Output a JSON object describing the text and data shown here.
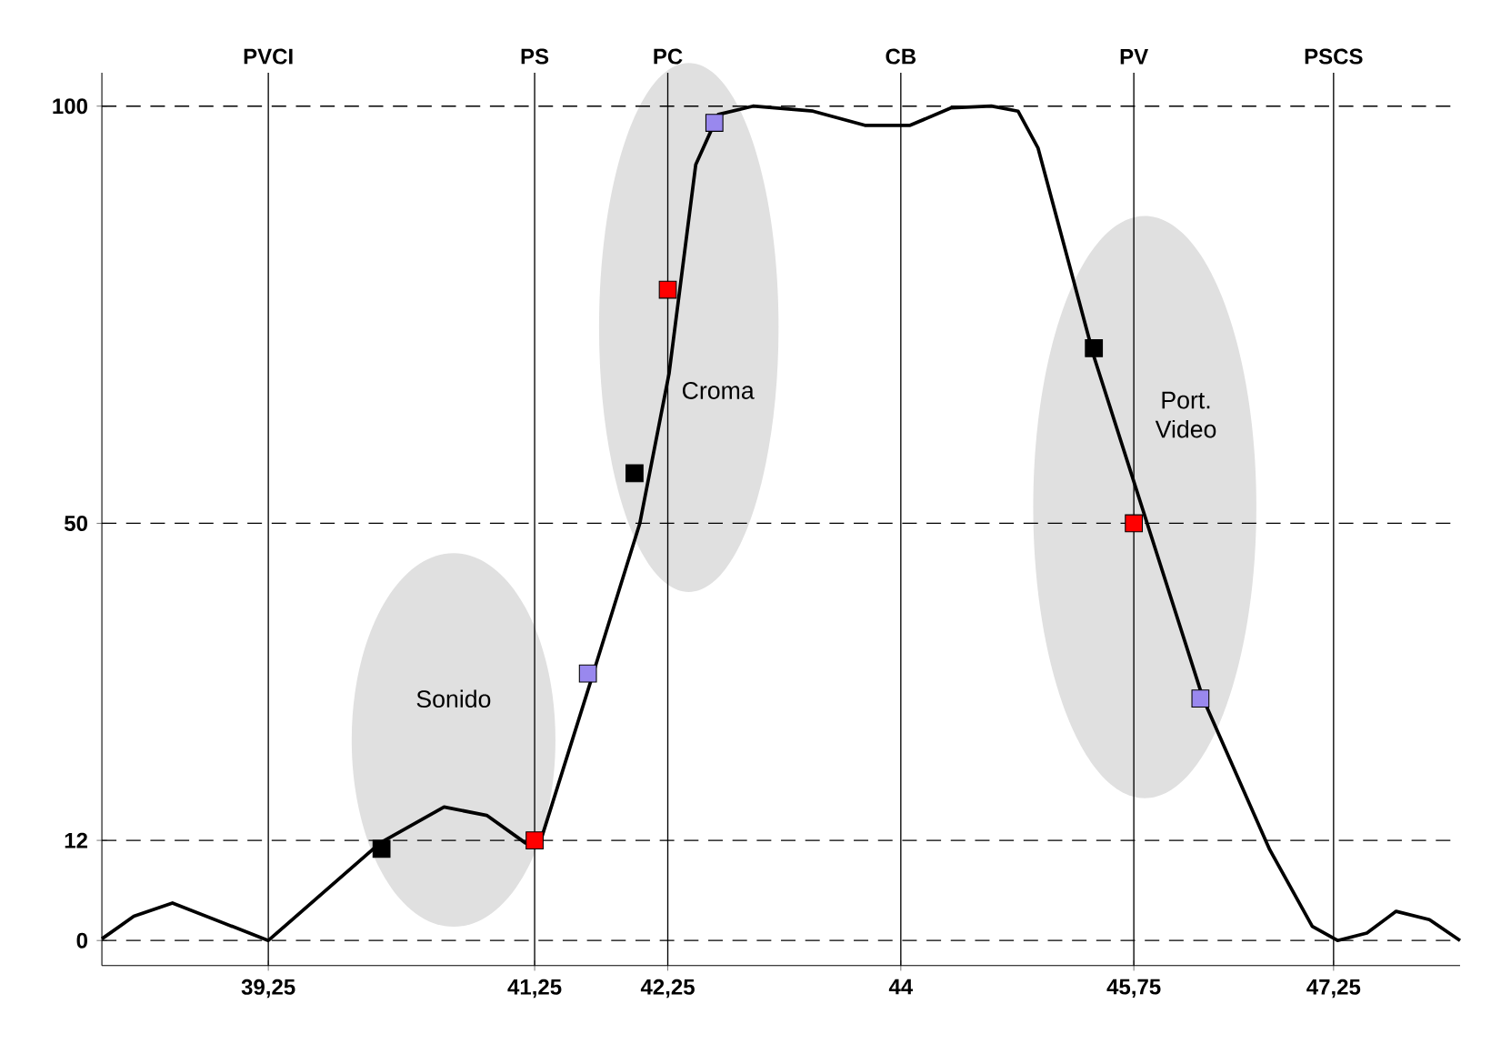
{
  "chart_data": {
    "type": "line",
    "xlim": [
      38.0,
      48.2
    ],
    "ylim": [
      -3,
      104
    ],
    "xticks": [
      {
        "value": 39.25,
        "label": "39,25"
      },
      {
        "value": 41.25,
        "label": "41,25"
      },
      {
        "value": 42.25,
        "label": "42,25"
      },
      {
        "value": 44,
        "label": "44"
      },
      {
        "value": 45.75,
        "label": "45,75"
      },
      {
        "value": 47.25,
        "label": "47,25"
      }
    ],
    "yticks": [
      0,
      12,
      50,
      100
    ],
    "grid": "y",
    "ref_lines": [
      {
        "axis": "x",
        "value": 39.25,
        "label": "PVCI"
      },
      {
        "axis": "x",
        "value": 41.25,
        "label": "PS"
      },
      {
        "axis": "x",
        "value": 42.25,
        "label": "PC"
      },
      {
        "axis": "x",
        "value": 44,
        "label": "CB"
      },
      {
        "axis": "x",
        "value": 45.75,
        "label": "PV"
      },
      {
        "axis": "x",
        "value": 47.25,
        "label": "PSCS"
      }
    ],
    "series": [
      {
        "color": "#000000",
        "marker": "none",
        "line_style": "solid",
        "x": [
          38.0,
          38.24,
          38.53,
          39.25,
          40.09,
          40.57,
          40.89,
          41.18,
          41.29,
          41.67,
          42.04,
          42.26,
          42.46,
          42.63,
          42.89,
          43.34,
          43.73,
          44.07,
          44.38,
          44.68,
          44.88,
          45.03,
          45.45,
          46.27,
          46.77,
          47.09,
          47.28,
          47.5,
          47.72,
          47.97,
          48.2
        ],
        "values": [
          0.2,
          2.9,
          4.5,
          0,
          11.7,
          16,
          15,
          11.7,
          11.7,
          31,
          50,
          68,
          93,
          99,
          100,
          99.4,
          97.7,
          97.7,
          99.8,
          100,
          99.4,
          95,
          70,
          29,
          10.9,
          1.7,
          0,
          0.9,
          3.5,
          2.5,
          0
        ]
      },
      {
        "type": "scatter",
        "color": "#000000",
        "marker": "square",
        "x": [
          40.1,
          42.0,
          45.45
        ],
        "values": [
          11,
          56,
          71
        ]
      },
      {
        "type": "scatter",
        "color": "#ff0000",
        "marker": "square",
        "x": [
          41.25,
          42.25,
          45.75
        ],
        "values": [
          12,
          78,
          50
        ]
      },
      {
        "type": "scatter",
        "color": "#9988ee",
        "marker": "square",
        "x": [
          41.65,
          42.6,
          46.25
        ],
        "values": [
          32,
          98,
          29
        ]
      }
    ],
    "annotations": [
      "Sonido",
      "Croma",
      "Port. Video"
    ]
  }
}
